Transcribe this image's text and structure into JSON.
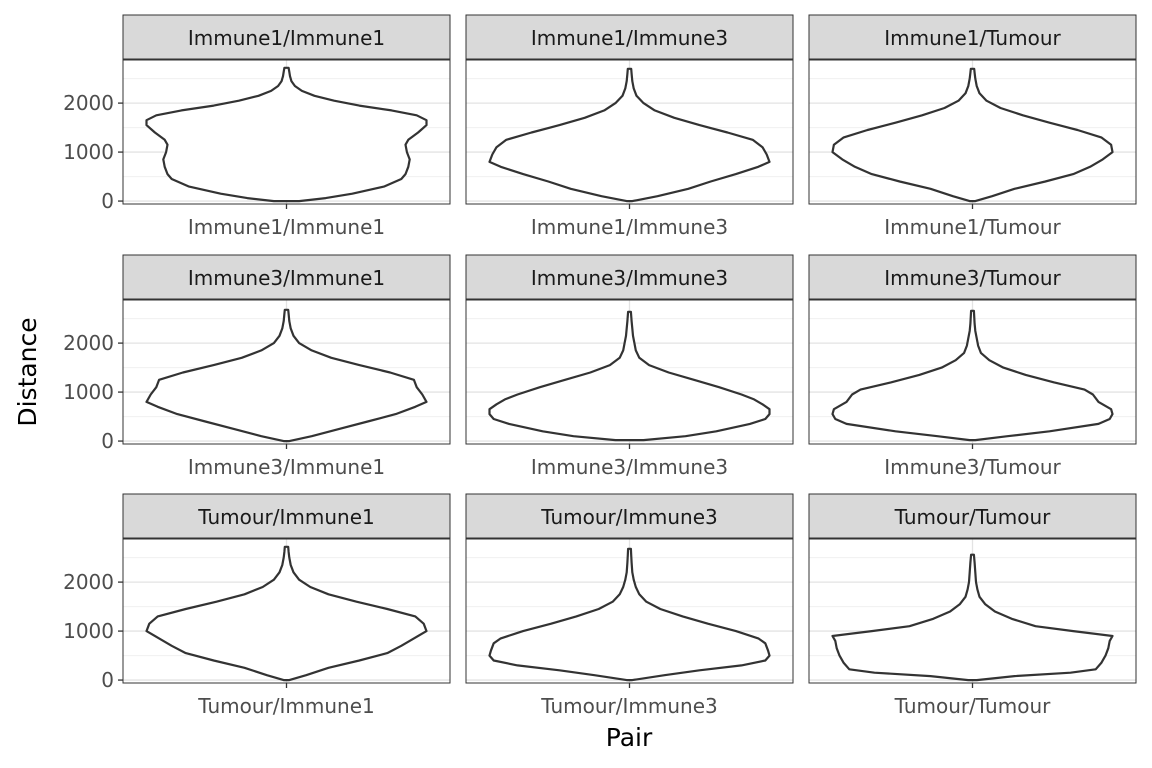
{
  "chart_data": {
    "type": "violin",
    "xlabel": "Pair",
    "ylabel": "Distance",
    "y_axis": {
      "ticks": [
        0,
        1000,
        2000
      ],
      "range": [
        -60,
        2880
      ],
      "grid": true
    },
    "panel_background": "#ffffff",
    "strip_background": "#d9d9d9",
    "violin_outline_color": "#333333",
    "panels": [
      {
        "strip": "Immune1/Immune1",
        "x_tick": "Immune1/Immune1",
        "y_range": [
          0,
          2720
        ],
        "profile": [
          [
            0,
            0.09
          ],
          [
            60,
            0.28
          ],
          [
            150,
            0.47
          ],
          [
            300,
            0.7
          ],
          [
            450,
            0.82
          ],
          [
            550,
            0.85
          ],
          [
            700,
            0.87
          ],
          [
            850,
            0.88
          ],
          [
            1000,
            0.86
          ],
          [
            1150,
            0.85
          ],
          [
            1250,
            0.87
          ],
          [
            1400,
            0.94
          ],
          [
            1550,
            1.0
          ],
          [
            1650,
            1.0
          ],
          [
            1750,
            0.93
          ],
          [
            1850,
            0.75
          ],
          [
            1950,
            0.52
          ],
          [
            2050,
            0.34
          ],
          [
            2150,
            0.2
          ],
          [
            2250,
            0.11
          ],
          [
            2350,
            0.06
          ],
          [
            2450,
            0.035
          ],
          [
            2550,
            0.025
          ],
          [
            2640,
            0.02
          ],
          [
            2720,
            0.015
          ]
        ]
      },
      {
        "strip": "Immune1/Immune3",
        "x_tick": "Immune1/Immune3",
        "y_range": [
          0,
          2700
        ],
        "profile": [
          [
            0,
            0.02
          ],
          [
            100,
            0.2
          ],
          [
            250,
            0.42
          ],
          [
            400,
            0.58
          ],
          [
            550,
            0.76
          ],
          [
            700,
            0.92
          ],
          [
            800,
            1.0
          ],
          [
            950,
            0.98
          ],
          [
            1100,
            0.95
          ],
          [
            1250,
            0.88
          ],
          [
            1400,
            0.7
          ],
          [
            1550,
            0.5
          ],
          [
            1700,
            0.32
          ],
          [
            1850,
            0.18
          ],
          [
            2000,
            0.1
          ],
          [
            2150,
            0.05
          ],
          [
            2300,
            0.03
          ],
          [
            2450,
            0.02
          ],
          [
            2600,
            0.015
          ],
          [
            2700,
            0.012
          ]
        ]
      },
      {
        "strip": "Immune1/Tumour",
        "x_tick": "Immune1/Tumour",
        "y_range": [
          0,
          2700
        ],
        "profile": [
          [
            0,
            0.02
          ],
          [
            100,
            0.14
          ],
          [
            250,
            0.3
          ],
          [
            400,
            0.52
          ],
          [
            550,
            0.72
          ],
          [
            700,
            0.84
          ],
          [
            850,
            0.93
          ],
          [
            1000,
            1.0
          ],
          [
            1150,
            0.99
          ],
          [
            1300,
            0.92
          ],
          [
            1450,
            0.75
          ],
          [
            1600,
            0.55
          ],
          [
            1750,
            0.36
          ],
          [
            1900,
            0.2
          ],
          [
            2050,
            0.1
          ],
          [
            2200,
            0.05
          ],
          [
            2350,
            0.03
          ],
          [
            2500,
            0.02
          ],
          [
            2620,
            0.015
          ],
          [
            2700,
            0.012
          ]
        ]
      },
      {
        "strip": "Immune3/Immune1",
        "x_tick": "Immune3/Immune1",
        "y_range": [
          0,
          2680
        ],
        "profile": [
          [
            0,
            0.02
          ],
          [
            100,
            0.18
          ],
          [
            250,
            0.38
          ],
          [
            400,
            0.58
          ],
          [
            550,
            0.78
          ],
          [
            700,
            0.92
          ],
          [
            800,
            1.0
          ],
          [
            950,
            0.97
          ],
          [
            1100,
            0.93
          ],
          [
            1250,
            0.91
          ],
          [
            1400,
            0.74
          ],
          [
            1550,
            0.52
          ],
          [
            1700,
            0.32
          ],
          [
            1850,
            0.18
          ],
          [
            2000,
            0.09
          ],
          [
            2150,
            0.05
          ],
          [
            2300,
            0.03
          ],
          [
            2450,
            0.02
          ],
          [
            2600,
            0.015
          ],
          [
            2680,
            0.012
          ]
        ]
      },
      {
        "strip": "Immune3/Immune3",
        "x_tick": "Immune3/Immune3",
        "y_range": [
          20,
          2640
        ],
        "profile": [
          [
            20,
            0.1
          ],
          [
            100,
            0.4
          ],
          [
            200,
            0.62
          ],
          [
            350,
            0.86
          ],
          [
            450,
            0.97
          ],
          [
            550,
            1.0
          ],
          [
            650,
            1.0
          ],
          [
            750,
            0.95
          ],
          [
            850,
            0.89
          ],
          [
            950,
            0.8
          ],
          [
            1100,
            0.64
          ],
          [
            1250,
            0.46
          ],
          [
            1400,
            0.28
          ],
          [
            1550,
            0.14
          ],
          [
            1700,
            0.07
          ],
          [
            1850,
            0.045
          ],
          [
            2000,
            0.035
          ],
          [
            2150,
            0.025
          ],
          [
            2300,
            0.02
          ],
          [
            2450,
            0.015
          ],
          [
            2640,
            0.01
          ]
        ]
      },
      {
        "strip": "Immune3/Tumour",
        "x_tick": "Immune3/Tumour",
        "y_range": [
          20,
          2660
        ],
        "profile": [
          [
            20,
            0.02
          ],
          [
            100,
            0.25
          ],
          [
            200,
            0.55
          ],
          [
            350,
            0.9
          ],
          [
            450,
            0.98
          ],
          [
            550,
            1.0
          ],
          [
            650,
            0.99
          ],
          [
            800,
            0.9
          ],
          [
            950,
            0.86
          ],
          [
            1050,
            0.8
          ],
          [
            1200,
            0.58
          ],
          [
            1350,
            0.38
          ],
          [
            1500,
            0.22
          ],
          [
            1650,
            0.12
          ],
          [
            1800,
            0.06
          ],
          [
            1950,
            0.04
          ],
          [
            2100,
            0.03
          ],
          [
            2250,
            0.02
          ],
          [
            2400,
            0.015
          ],
          [
            2550,
            0.012
          ],
          [
            2660,
            0.01
          ]
        ]
      },
      {
        "strip": "Tumour/Immune1",
        "x_tick": "Tumour/Immune1",
        "y_range": [
          0,
          2720
        ],
        "profile": [
          [
            0,
            0.02
          ],
          [
            100,
            0.14
          ],
          [
            250,
            0.3
          ],
          [
            400,
            0.52
          ],
          [
            550,
            0.72
          ],
          [
            700,
            0.82
          ],
          [
            850,
            0.91
          ],
          [
            1000,
            1.0
          ],
          [
            1150,
            0.98
          ],
          [
            1300,
            0.92
          ],
          [
            1450,
            0.72
          ],
          [
            1600,
            0.5
          ],
          [
            1750,
            0.3
          ],
          [
            1900,
            0.17
          ],
          [
            2050,
            0.09
          ],
          [
            2200,
            0.05
          ],
          [
            2350,
            0.03
          ],
          [
            2500,
            0.02
          ],
          [
            2620,
            0.015
          ],
          [
            2720,
            0.012
          ]
        ]
      },
      {
        "strip": "Tumour/Immune3",
        "x_tick": "Tumour/Immune3",
        "y_range": [
          0,
          2680
        ],
        "profile": [
          [
            0,
            0.02
          ],
          [
            100,
            0.25
          ],
          [
            200,
            0.5
          ],
          [
            300,
            0.8
          ],
          [
            400,
            0.97
          ],
          [
            500,
            1.0
          ],
          [
            600,
            0.99
          ],
          [
            750,
            0.97
          ],
          [
            850,
            0.92
          ],
          [
            1000,
            0.76
          ],
          [
            1150,
            0.56
          ],
          [
            1300,
            0.38
          ],
          [
            1450,
            0.22
          ],
          [
            1600,
            0.12
          ],
          [
            1750,
            0.07
          ],
          [
            1900,
            0.045
          ],
          [
            2050,
            0.03
          ],
          [
            2200,
            0.02
          ],
          [
            2400,
            0.015
          ],
          [
            2550,
            0.012
          ],
          [
            2680,
            0.01
          ]
        ]
      },
      {
        "strip": "Tumour/Tumour",
        "x_tick": "Tumour/Tumour",
        "y_range": [
          0,
          2560
        ],
        "profile": [
          [
            0,
            0.03
          ],
          [
            80,
            0.3
          ],
          [
            150,
            0.7
          ],
          [
            220,
            0.88
          ],
          [
            350,
            0.92
          ],
          [
            500,
            0.95
          ],
          [
            650,
            0.97
          ],
          [
            800,
            0.98
          ],
          [
            900,
            1.0
          ],
          [
            1000,
            0.72
          ],
          [
            1100,
            0.45
          ],
          [
            1250,
            0.28
          ],
          [
            1400,
            0.16
          ],
          [
            1550,
            0.09
          ],
          [
            1700,
            0.05
          ],
          [
            1850,
            0.035
          ],
          [
            2000,
            0.025
          ],
          [
            2200,
            0.02
          ],
          [
            2400,
            0.015
          ],
          [
            2560,
            0.01
          ]
        ]
      }
    ]
  }
}
